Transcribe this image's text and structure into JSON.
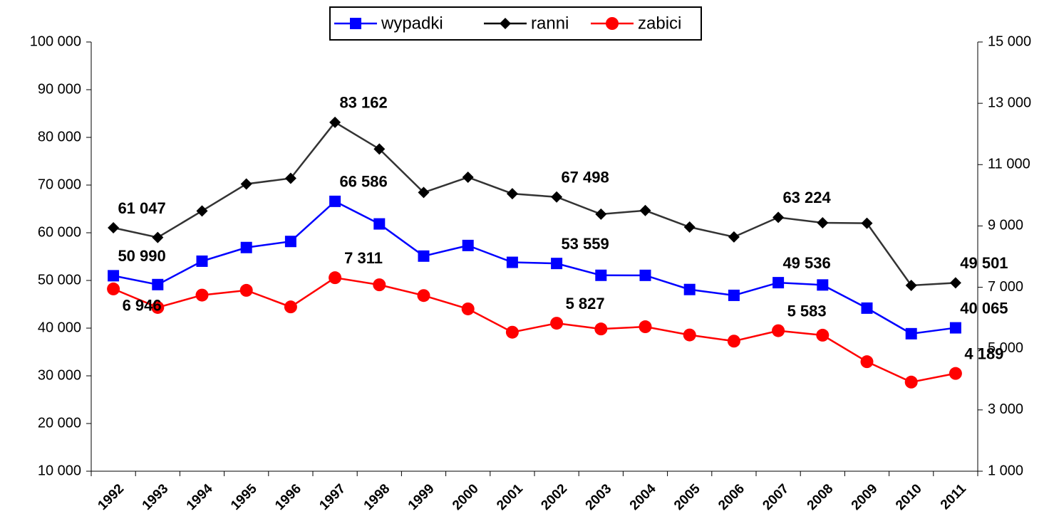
{
  "chart_data": {
    "type": "line",
    "categories": [
      "1992",
      "1993",
      "1994",
      "1995",
      "1996",
      "1997",
      "1998",
      "1999",
      "2000",
      "2001",
      "2002",
      "2003",
      "2004",
      "2005",
      "2006",
      "2007",
      "2008",
      "2009",
      "2010",
      "2011"
    ],
    "series": [
      {
        "name": "wypadki",
        "color": "#0000ff",
        "marker": "square",
        "values": [
          50990,
          49134,
          54038,
          56904,
          58176,
          66586,
          61855,
          55106,
          57331,
          53799,
          53559,
          51078,
          51069,
          48100,
          46876,
          49536,
          49054,
          44196,
          38832,
          40065
        ],
        "value_labels": [
          "50 990",
          null,
          null,
          null,
          null,
          "66 586",
          null,
          null,
          null,
          null,
          "53 559",
          null,
          null,
          null,
          null,
          "49 536",
          null,
          null,
          null,
          "40 065"
        ]
      },
      {
        "name": "ranni",
        "color": "#000000",
        "marker": "diamond",
        "values": [
          61047,
          59015,
          64574,
          70226,
          71419,
          83162,
          77560,
          68449,
          71638,
          68194,
          67498,
          63900,
          64661,
          61191,
          59123,
          63224,
          62097,
          62000,
          48952,
          49501
        ],
        "value_labels": [
          "61 047",
          null,
          null,
          null,
          null,
          "83 162",
          null,
          null,
          null,
          null,
          "67 498",
          null,
          null,
          null,
          null,
          "63 224",
          null,
          null,
          null,
          "49 501"
        ]
      },
      {
        "name": "zabici",
        "color": "#ff0000",
        "marker": "circle",
        "axis": "y2",
        "values": [
          6946,
          6341,
          6744,
          6900,
          6359,
          7311,
          7080,
          6730,
          6294,
          5534,
          5827,
          5640,
          5712,
          5444,
          5243,
          5583,
          5437,
          4572,
          3907,
          4189
        ],
        "value_labels": [
          "6 946",
          null,
          null,
          null,
          null,
          "7 311",
          null,
          null,
          null,
          null,
          "5 827",
          null,
          null,
          null,
          null,
          "5 583",
          null,
          null,
          null,
          "4 189"
        ]
      }
    ],
    "ylim": [
      10000,
      100000
    ],
    "yticks": [
      {
        "value": 10000,
        "label": "10 000"
      },
      {
        "value": 20000,
        "label": "20 000"
      },
      {
        "value": 30000,
        "label": "30 000"
      },
      {
        "value": 40000,
        "label": "40 000"
      },
      {
        "value": 50000,
        "label": "50 000"
      },
      {
        "value": 60000,
        "label": "60 000"
      },
      {
        "value": 70000,
        "label": "70 000"
      },
      {
        "value": 80000,
        "label": "80 000"
      },
      {
        "value": 90000,
        "label": "90 000"
      },
      {
        "value": 100000,
        "label": "100 000"
      }
    ],
    "y2lim": [
      1000,
      15000
    ],
    "y2ticks": [
      {
        "value": 1000,
        "label": "1 000"
      },
      {
        "value": 3000,
        "label": "3 000"
      },
      {
        "value": 5000,
        "label": "5 000"
      },
      {
        "value": 7000,
        "label": "7 000"
      },
      {
        "value": 9000,
        "label": "9 000"
      },
      {
        "value": 11000,
        "label": "11 000"
      },
      {
        "value": 13000,
        "label": "13 000"
      },
      {
        "value": 15000,
        "label": "15 000"
      }
    ],
    "legend": "top"
  }
}
